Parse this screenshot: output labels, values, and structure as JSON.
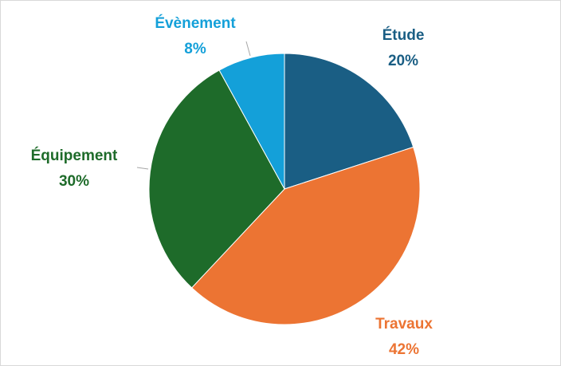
{
  "chart_data": {
    "type": "pie",
    "categories": [
      "Étude",
      "Travaux",
      "Équipement",
      "Évènement"
    ],
    "values": [
      20,
      42,
      30,
      8
    ],
    "value_labels": [
      "20%",
      "42%",
      "30%",
      "8%"
    ],
    "colors": [
      "#1a5e84",
      "#ec7433",
      "#1e6b2a",
      "#14a0d9"
    ]
  }
}
